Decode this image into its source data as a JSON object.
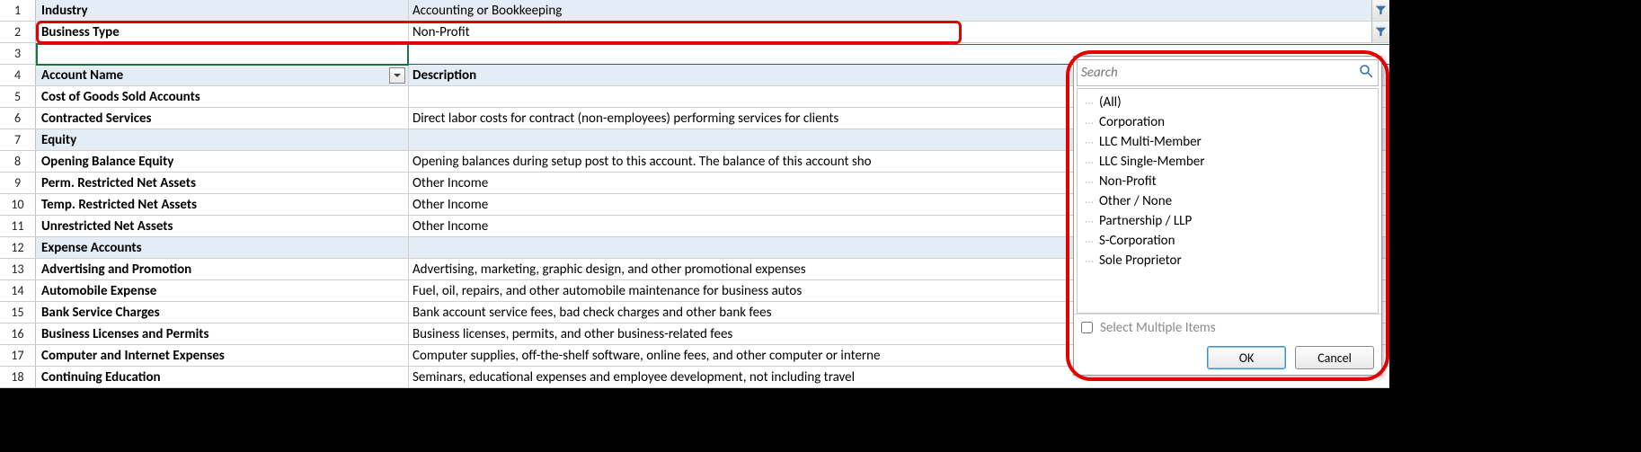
{
  "rows": [
    {
      "n": "1",
      "a": "Industry",
      "b": "Accounting or Bookkeeping",
      "shaded": true,
      "boldA": true
    },
    {
      "n": "2",
      "a": "Business Type",
      "b": "Non-Profit",
      "shaded": false,
      "boldA": true
    },
    {
      "n": "3",
      "a": "",
      "b": "",
      "shaded": false,
      "boldA": true
    },
    {
      "n": "4",
      "a": "Account Name",
      "b": "Description",
      "shaded": true,
      "boldA": true,
      "header": true
    },
    {
      "n": "5",
      "a": "Cost of Goods Sold Accounts",
      "b": "",
      "shaded": false,
      "boldA": true
    },
    {
      "n": "6",
      "a": "Contracted Services",
      "b": "Direct labor costs for contract (non-employees) performing services for clients",
      "shaded": false,
      "boldA": true
    },
    {
      "n": "7",
      "a": "Equity",
      "b": "",
      "shaded": true,
      "boldA": true
    },
    {
      "n": "8",
      "a": "Opening Balance Equity",
      "b": "Opening balances during setup post to this account. The balance of this account sho",
      "shaded": false,
      "boldA": true
    },
    {
      "n": "9",
      "a": "Perm. Restricted Net Assets",
      "b": "Other Income",
      "shaded": false,
      "boldA": true
    },
    {
      "n": "10",
      "a": "Temp. Restricted Net Assets",
      "b": "Other Income",
      "shaded": false,
      "boldA": true
    },
    {
      "n": "11",
      "a": "Unrestricted Net Assets",
      "b": "Other Income",
      "shaded": false,
      "boldA": true
    },
    {
      "n": "12",
      "a": "Expense Accounts",
      "b": "",
      "shaded": true,
      "boldA": true
    },
    {
      "n": "13",
      "a": "Advertising and Promotion",
      "b": "Advertising, marketing, graphic design, and other promotional expenses",
      "shaded": false,
      "boldA": true
    },
    {
      "n": "14",
      "a": "Automobile Expense",
      "b": "Fuel, oil, repairs, and other automobile maintenance for business autos",
      "shaded": false,
      "boldA": true
    },
    {
      "n": "15",
      "a": "Bank Service Charges",
      "b": "Bank account service fees, bad check charges and other bank fees",
      "shaded": false,
      "boldA": true
    },
    {
      "n": "16",
      "a": "Business Licenses and Permits",
      "b": "Business licenses, permits, and other business-related fees",
      "shaded": false,
      "boldA": true
    },
    {
      "n": "17",
      "a": "Computer and Internet Expenses",
      "b": "Computer supplies, off-the-shelf software, online fees, and other computer or interne",
      "shaded": false,
      "boldA": true
    },
    {
      "n": "18",
      "a": "Continuing Education",
      "b": "Seminars, educational expenses and employee development, not including travel",
      "shaded": false,
      "boldA": true
    }
  ],
  "popup": {
    "search_placeholder": "Search",
    "items": [
      "(All)",
      "Corporation",
      "LLC Multi-Member",
      "LLC Single-Member",
      "Non-Profit",
      "Other / None",
      "Partnership / LLP",
      "S-Corporation",
      "Sole Proprietor"
    ],
    "multi_label": "Select Multiple Items",
    "ok_label": "OK",
    "cancel_label": "Cancel"
  },
  "colors": {
    "shaded_bg": "#e4edf6",
    "red": "#e30000",
    "active_green": "#1a7340"
  }
}
